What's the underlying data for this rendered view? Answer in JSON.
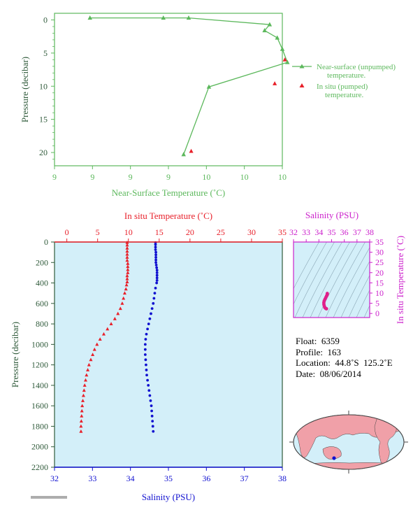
{
  "chart_data": [
    {
      "type": "line",
      "name_key": "near_surface",
      "xlabel": "Near-Surface Temperature (˚C)",
      "ylabel": "Pressure (decibar)",
      "x_tick_labels": [
        "9",
        "9",
        "9",
        "9",
        "10",
        "10",
        "10"
      ],
      "y_tick_labels": [
        "0",
        "5",
        "10",
        "15",
        "20"
      ],
      "xlim": [
        9.05,
        9.95
      ],
      "ylim": [
        22,
        -1
      ],
      "series": [
        {
          "name": "Near-surface (unpumped) temperature.",
          "color": "#5cb85c",
          "marker": "triangle",
          "points": [
            [
              9.19,
              -0.3
            ],
            [
              9.48,
              -0.3
            ],
            [
              9.58,
              -0.3
            ],
            [
              9.9,
              0.7
            ],
            [
              9.88,
              1.6
            ],
            [
              9.93,
              2.7
            ],
            [
              9.95,
              4.4
            ],
            [
              9.97,
              6.4
            ],
            [
              9.66,
              10.1
            ],
            [
              9.56,
              20.3
            ]
          ]
        },
        {
          "name": "In situ (pumped) temperature.",
          "color": "#e8202a",
          "marker": "triangle",
          "points": [
            [
              9.96,
              6.0
            ],
            [
              9.92,
              9.6
            ],
            [
              9.59,
              19.8
            ]
          ]
        }
      ]
    },
    {
      "type": "scatter",
      "name_key": "profile",
      "x_top_label": "In situ Temperature (˚C)",
      "x_top_ticks": [
        0,
        5,
        10,
        15,
        20,
        25,
        30,
        35
      ],
      "x_top_lim": [
        -2,
        35
      ],
      "x_bottom_label": "Salinity (PSU)",
      "x_bottom_ticks": [
        32,
        33,
        34,
        35,
        36,
        37,
        38
      ],
      "x_bottom_lim": [
        32,
        38
      ],
      "ylabel": "Pressure (decibar)",
      "y_ticks": [
        0,
        200,
        400,
        600,
        800,
        1000,
        1200,
        1400,
        1600,
        1800,
        2000,
        2200
      ],
      "ylim": [
        0,
        2200
      ],
      "background": "#d3eff9",
      "series": [
        {
          "name": "In situ Temperature",
          "color": "#e8202a",
          "marker": "triangle",
          "pressure": [
            5,
            30,
            60,
            90,
            120,
            150,
            180,
            210,
            240,
            270,
            300,
            330,
            360,
            390,
            420,
            460,
            500,
            550,
            600,
            650,
            700,
            750,
            800,
            850,
            900,
            950,
            1000,
            1050,
            1100,
            1150,
            1200,
            1250,
            1300,
            1350,
            1400,
            1450,
            1500,
            1550,
            1600,
            1650,
            1700,
            1750,
            1800,
            1850
          ],
          "values": [
            9.8,
            9.8,
            9.8,
            9.8,
            9.8,
            9.8,
            9.8,
            9.9,
            9.9,
            9.9,
            9.9,
            9.8,
            9.8,
            9.8,
            9.7,
            9.6,
            9.4,
            9.2,
            9.0,
            8.7,
            8.3,
            7.8,
            7.2,
            6.6,
            6.0,
            5.4,
            4.9,
            4.5,
            4.2,
            3.9,
            3.6,
            3.4,
            3.2,
            3.05,
            2.9,
            2.8,
            2.7,
            2.6,
            2.5,
            2.45,
            2.4,
            2.35,
            2.3,
            2.3
          ]
        },
        {
          "name": "Salinity",
          "color": "#1010d0",
          "marker": "dot",
          "pressure": [
            5,
            25,
            50,
            75,
            100,
            125,
            150,
            175,
            200,
            225,
            250,
            275,
            300,
            325,
            350,
            375,
            400,
            450,
            500,
            550,
            600,
            650,
            700,
            750,
            800,
            850,
            900,
            950,
            1000,
            1050,
            1100,
            1150,
            1200,
            1250,
            1300,
            1350,
            1400,
            1450,
            1500,
            1550,
            1600,
            1650,
            1700,
            1750,
            1800,
            1850
          ],
          "values": [
            34.66,
            34.66,
            34.66,
            34.66,
            34.67,
            34.67,
            34.67,
            34.67,
            34.67,
            34.68,
            34.69,
            34.7,
            34.7,
            34.7,
            34.7,
            34.7,
            34.69,
            34.66,
            34.64,
            34.62,
            34.6,
            34.57,
            34.54,
            34.51,
            34.48,
            34.45,
            34.42,
            34.4,
            34.39,
            34.39,
            34.39,
            34.4,
            34.41,
            34.42,
            34.43,
            34.45,
            34.47,
            34.49,
            34.51,
            34.53,
            34.55,
            34.56,
            34.57,
            34.58,
            34.59,
            34.6
          ]
        }
      ]
    },
    {
      "type": "scatter",
      "name_key": "ts",
      "x_top_label": "Salinity (PSU)",
      "x_ticks": [
        32,
        33,
        34,
        35,
        36,
        37,
        38
      ],
      "xlim": [
        32,
        38
      ],
      "ylabel": "In situ Temperature (˚C)",
      "y_ticks": [
        0,
        5,
        10,
        15,
        20,
        25,
        30,
        35
      ],
      "ylim": [
        -2,
        35
      ],
      "background": "#d3eff9",
      "color": "#e0208a",
      "points": [
        [
          34.66,
          9.8
        ],
        [
          34.66,
          9.4
        ],
        [
          34.64,
          9.0
        ],
        [
          34.6,
          8.5
        ],
        [
          34.54,
          7.8
        ],
        [
          34.48,
          7.0
        ],
        [
          34.42,
          6.2
        ],
        [
          34.39,
          5.4
        ],
        [
          34.39,
          4.6
        ],
        [
          34.41,
          3.9
        ],
        [
          34.44,
          3.3
        ],
        [
          34.48,
          2.8
        ],
        [
          34.53,
          2.5
        ],
        [
          34.57,
          2.35
        ],
        [
          34.6,
          2.3
        ]
      ]
    }
  ],
  "float_info": {
    "float": "Float:  6359",
    "profile": "Profile:  163",
    "location": "Location:  44.8˚S  125.2˚E",
    "date": "Date:  08/06/2014"
  },
  "colors": {
    "green": "#5cb85c",
    "red": "#e8202a",
    "blue": "#1010d0",
    "magenta": "#cc22cc",
    "axis_dark": "#2f5a3a",
    "water": "#d3eff9",
    "land": "#f0a0a8"
  },
  "map": {
    "float_lat": -44.8,
    "float_lon": 125.2
  }
}
